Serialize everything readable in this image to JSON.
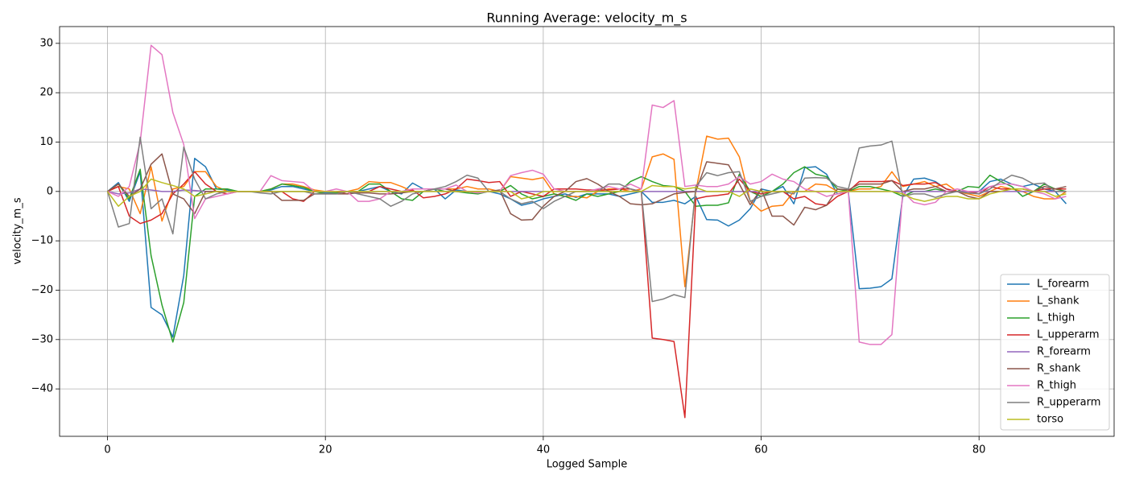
{
  "chart_data": {
    "type": "line",
    "title": "Running Average: velocity_m_s",
    "x_label": "Logged Sample",
    "y_label": "velocity_m_s",
    "x": [
      0,
      1,
      2,
      3,
      4,
      5,
      6,
      7,
      8,
      9,
      10,
      11,
      12,
      13,
      14,
      15,
      16,
      17,
      18,
      19,
      20,
      21,
      22,
      23,
      24,
      25,
      26,
      27,
      28,
      29,
      30,
      31,
      32,
      33,
      34,
      35,
      36,
      37,
      38,
      39,
      40,
      41,
      42,
      43,
      44,
      45,
      46,
      47,
      48,
      49,
      50,
      51,
      52,
      53,
      54,
      55,
      56,
      57,
      58,
      59,
      60,
      61,
      62,
      63,
      64,
      65,
      66,
      67,
      68,
      69,
      70,
      71,
      72,
      73,
      74,
      75,
      76,
      77,
      78,
      79,
      80,
      81,
      82,
      83,
      84,
      85,
      86,
      87,
      88
    ],
    "xlim": [
      -4.4,
      92.4
    ],
    "ylim": [
      -49.6,
      33.4
    ],
    "xticks": [
      0,
      20,
      40,
      60,
      80
    ],
    "yticks": [
      {
        "value": -40,
        "label": "−40"
      },
      {
        "value": -30,
        "label": "−30"
      },
      {
        "value": -20,
        "label": "−20"
      },
      {
        "value": -10,
        "label": "−10"
      },
      0,
      10,
      20,
      30
    ],
    "grid": true,
    "legend": "lower right",
    "series": [
      {
        "name": "L_forearm",
        "color": "#1f77b4",
        "values": [
          0,
          1.8,
          -2,
          4,
          -23.5,
          -25,
          -29.5,
          -17,
          6.7,
          5,
          0.5,
          0.3,
          0,
          0,
          0,
          0.3,
          1,
          1,
          0.5,
          0,
          -0.3,
          -0.3,
          0,
          0,
          0.5,
          1,
          0,
          -0.5,
          1.7,
          0.5,
          0.5,
          -1.5,
          0.3,
          0,
          -0.3,
          0,
          -0.5,
          -1.5,
          -2.8,
          -2.3,
          -1.5,
          -1,
          -0.5,
          -1.2,
          -0.5,
          -0.5,
          -0.5,
          -1,
          -0.5,
          0,
          -2.2,
          -2.2,
          -1.8,
          -2.5,
          -1,
          -5.7,
          -5.8,
          -7,
          -5.8,
          -3.5,
          0.5,
          0,
          1,
          -2.5,
          4.8,
          5,
          3.5,
          -0.5,
          0,
          -19.7,
          -19.6,
          -19.3,
          -17.7,
          -1,
          2.5,
          2.7,
          2,
          0.5,
          0,
          -0.5,
          0,
          2,
          2.5,
          1.5,
          1,
          1.5,
          0.5,
          0,
          -2.5
        ]
      },
      {
        "name": "L_shank",
        "color": "#ff7f0e",
        "values": [
          0,
          1,
          0.5,
          -4.5,
          5,
          -6,
          0.5,
          1,
          4,
          4,
          1,
          0,
          0,
          0,
          0,
          0.5,
          1.5,
          1.5,
          1,
          0.3,
          0,
          0,
          0,
          0.5,
          2,
          1.8,
          1.8,
          1,
          0,
          0,
          0.5,
          0.5,
          0.5,
          1,
          0.5,
          0.5,
          0,
          3,
          2.7,
          2.4,
          2.8,
          -0.5,
          -1,
          -1,
          -1.3,
          0,
          0.5,
          0.5,
          0,
          0.5,
          7,
          7.6,
          6.5,
          -19.3,
          0,
          11.2,
          10.6,
          10.8,
          7,
          -2,
          -4,
          -3,
          -2.8,
          0,
          0,
          1.5,
          1.3,
          0,
          0,
          0.5,
          0.5,
          1,
          4,
          1,
          1.5,
          2,
          1,
          1.5,
          0,
          -0.5,
          -1,
          0,
          1,
          0.5,
          0,
          -1,
          -1.5,
          -1.5,
          0
        ]
      },
      {
        "name": "L_thigh",
        "color": "#2ca02c",
        "values": [
          0,
          1.5,
          -1.5,
          4.5,
          -13,
          -23,
          -30.5,
          -22.5,
          -1,
          0.5,
          0.5,
          0.5,
          0,
          0,
          0,
          0.5,
          1.5,
          1.2,
          0.8,
          0,
          -0.5,
          -0.3,
          0,
          0,
          1.5,
          1.5,
          0,
          -1.5,
          -1.8,
          0,
          0.5,
          0,
          0,
          -0.3,
          -0.5,
          0,
          0,
          1.2,
          -0.5,
          -1.5,
          -1,
          -0.5,
          -1,
          -1.8,
          -0.5,
          -1,
          -0.5,
          0,
          2,
          3,
          2,
          1.2,
          1,
          0,
          -3,
          -2.8,
          -2.8,
          -2.3,
          3.5,
          0,
          -1,
          0,
          1.5,
          3.8,
          5,
          3.5,
          3,
          0.5,
          0,
          1,
          1,
          0.5,
          0,
          -1,
          0,
          0,
          0.5,
          0,
          0,
          1,
          0.8,
          3.3,
          2,
          1,
          -1,
          0,
          1.5,
          0.5,
          0
        ]
      },
      {
        "name": "L_upperarm",
        "color": "#d62728",
        "values": [
          0,
          1,
          -5,
          -6.5,
          -5.8,
          -4.5,
          -0.5,
          1.5,
          4,
          1.5,
          0,
          -0.5,
          0,
          0,
          0,
          0,
          0,
          -1.5,
          -2,
          0,
          0,
          0,
          -0.5,
          0,
          0,
          1,
          0.5,
          0,
          0.3,
          -1.3,
          -1,
          -0.5,
          0.5,
          2.5,
          2.2,
          1.8,
          2,
          -1,
          0,
          -0.5,
          -1,
          0.5,
          0.5,
          0.5,
          0.3,
          0.3,
          0.3,
          0.5,
          0.5,
          0,
          -29.7,
          -30,
          -30.4,
          -45.8,
          -1.5,
          -1,
          -0.8,
          -0.5,
          2.5,
          0,
          -0.5,
          0,
          0,
          -1.5,
          -1,
          -2.5,
          -2.8,
          -1,
          0,
          2,
          2,
          2,
          2.2,
          1.2,
          1.5,
          1.5,
          1.8,
          0.5,
          0,
          0,
          -0.5,
          1,
          0.5,
          0.5,
          0.5,
          0,
          0.5,
          0.5,
          0.5
        ]
      },
      {
        "name": "R_forearm",
        "color": "#9467bd",
        "values": [
          0,
          -0.5,
          -0.3,
          0.5,
          0.3,
          0,
          0,
          0.3,
          0.2,
          0,
          0,
          0,
          0,
          0,
          0,
          0,
          0,
          0,
          0,
          0,
          0,
          0,
          0,
          0,
          0,
          0,
          0,
          0,
          0,
          0,
          0,
          0,
          0,
          0,
          0,
          0,
          0,
          0,
          0,
          0,
          0,
          0,
          0,
          0,
          0,
          0,
          0,
          0,
          0,
          0,
          0,
          0,
          0,
          0,
          0,
          0,
          0,
          0,
          0,
          0,
          0,
          0,
          0,
          0,
          0,
          0,
          0,
          0,
          0,
          0,
          0,
          0,
          0,
          0,
          0,
          0,
          0,
          0,
          0,
          0,
          0,
          0,
          0,
          0,
          0,
          0,
          0,
          0,
          0
        ]
      },
      {
        "name": "R_shank",
        "color": "#8c564b",
        "values": [
          0,
          1.5,
          -1,
          0.5,
          5.5,
          7.6,
          -0.5,
          -1.5,
          -4.5,
          0,
          0,
          0,
          0,
          0,
          0,
          0,
          -1.8,
          -1.8,
          -1.8,
          -0.5,
          -0.5,
          -0.5,
          -0.5,
          -0.3,
          -0.3,
          -0.5,
          -0.5,
          -0.3,
          0,
          0,
          0.5,
          0.5,
          0,
          0,
          0,
          0,
          0.3,
          -4.5,
          -5.8,
          -5.7,
          -3,
          -1,
          0,
          2,
          2.6,
          1.5,
          0,
          -1,
          -2.5,
          -2.7,
          -2.5,
          -1.5,
          -0.5,
          -0.2,
          0,
          6,
          5.7,
          5.4,
          1.5,
          -2.7,
          0.5,
          -5,
          -5,
          -6.8,
          -3.2,
          -3.7,
          -2.8,
          0.5,
          0.3,
          1.5,
          1.5,
          1.5,
          2.2,
          0,
          0.5,
          0.5,
          1,
          0,
          0,
          -1,
          -1.5,
          0,
          0,
          0.5,
          0.5,
          0,
          1,
          0.5,
          1
        ]
      },
      {
        "name": "R_thigh",
        "color": "#e377c2",
        "values": [
          0,
          -1,
          1,
          10,
          29.6,
          27.7,
          16,
          9.5,
          -5.5,
          -1.5,
          -1,
          -0.5,
          0,
          0,
          0,
          3.2,
          2.2,
          2,
          1.8,
          0,
          0,
          0.5,
          0,
          -2,
          -2,
          -1.5,
          0,
          0,
          0.5,
          0.5,
          0.5,
          0.5,
          1.3,
          0,
          -0.3,
          0,
          0,
          3.2,
          3.8,
          4.3,
          3.5,
          0.5,
          0,
          0,
          0,
          0.5,
          1,
          0.5,
          1.5,
          0.5,
          17.5,
          17,
          18.4,
          1,
          1.3,
          1,
          1,
          1.5,
          3,
          1.5,
          2,
          3.5,
          2.5,
          2,
          0.5,
          0,
          -1,
          -0.5,
          0,
          -30.5,
          -31,
          -31,
          -29,
          0,
          -2.2,
          -2.7,
          -2.2,
          0,
          0.5,
          0,
          0,
          1,
          1.5,
          1.5,
          1,
          0,
          -0.5,
          -1.5,
          -1
        ]
      },
      {
        "name": "R_upperarm",
        "color": "#7f7f7f",
        "values": [
          0,
          -7.2,
          -6.5,
          11,
          -3.5,
          -1.5,
          -8.6,
          9,
          2.5,
          -1.5,
          -0.5,
          0,
          0,
          0,
          -0.3,
          -0.5,
          0,
          0,
          0,
          -0.5,
          -0.5,
          -0.5,
          0,
          -0.5,
          -1,
          -1.5,
          -3,
          -2,
          -0.5,
          0,
          0.5,
          1,
          2,
          3.3,
          2.7,
          0,
          0,
          -1.5,
          -2.5,
          -2,
          -3.5,
          -2,
          -1,
          0,
          0,
          0,
          1.5,
          1.5,
          0.5,
          0,
          -22.3,
          -21.8,
          -20.9,
          -21.5,
          1,
          3.8,
          3.2,
          3.8,
          4,
          -2,
          -1,
          -0.5,
          0,
          -0.5,
          2.7,
          2.8,
          2.7,
          1,
          0.5,
          8.8,
          9.2,
          9.4,
          10.2,
          -1,
          -0.5,
          -0.5,
          -1.2,
          -0.5,
          0,
          -0.3,
          -0.5,
          0.5,
          2,
          3.3,
          2.7,
          1.5,
          1.7,
          0,
          0
        ]
      },
      {
        "name": "torso",
        "color": "#bcbd22",
        "values": [
          0,
          -3,
          -1,
          0,
          2.5,
          1.8,
          1.2,
          0.5,
          -1,
          -0.5,
          0,
          0,
          0,
          0,
          0,
          0,
          0,
          0,
          0,
          0,
          0,
          0,
          0,
          0,
          0,
          0,
          0,
          0,
          0,
          0,
          0,
          0,
          0,
          0,
          0,
          0,
          0,
          0,
          -1.5,
          -1,
          0,
          0,
          0,
          0,
          0,
          0,
          0,
          0,
          0,
          0,
          1.2,
          1,
          1,
          0.5,
          0.8,
          0,
          0,
          0,
          -1,
          0.5,
          0,
          0,
          0,
          0,
          0,
          0,
          0,
          0,
          0,
          0,
          0,
          0,
          0,
          -0.5,
          -1.5,
          -2,
          -1.5,
          -1,
          -1,
          -1.5,
          -1.5,
          -0.5,
          0,
          0.5,
          0.5,
          0,
          0,
          -1,
          -0.5
        ]
      }
    ]
  }
}
